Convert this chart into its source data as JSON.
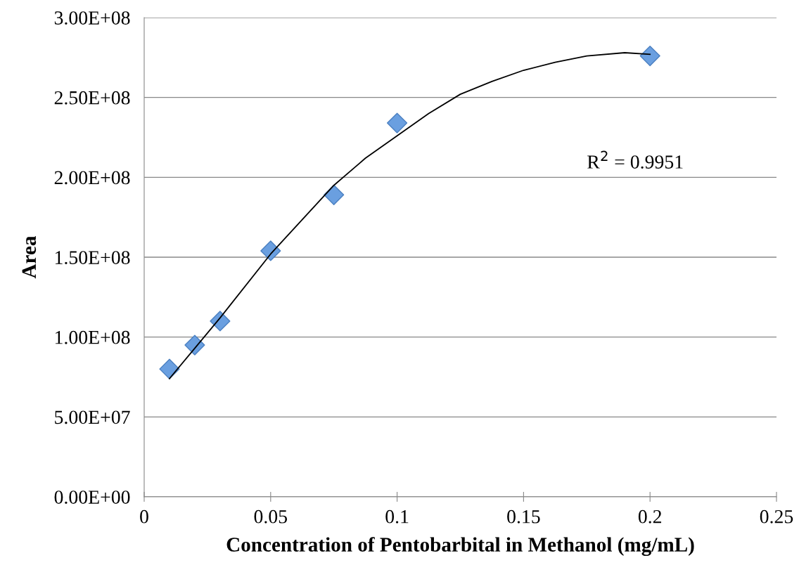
{
  "chart_data": {
    "type": "scatter",
    "xlabel": "Concentration of Pentobarbital in Methanol (mg/mL)",
    "ylabel": "Area",
    "annotations": [
      "R$^{2}$ = 0.9951"
    ],
    "series": [
      {
        "color": "#6a9fe0",
        "marker": "diamond",
        "x": [
          0.01,
          0.02,
          0.03,
          0.05,
          0.075,
          0.1,
          0.2
        ],
        "values": [
          80000000.0,
          95000000.0,
          110000000.0,
          154000000.0,
          189000000.0,
          234000000.0,
          276000000.0
        ]
      },
      {
        "type": "line",
        "color": "#000000",
        "marker": "none",
        "x": [
          0.01,
          0.02,
          0.03,
          0.05,
          0.075,
          0.0875,
          0.1,
          0.1125,
          0.125,
          0.1375,
          0.15,
          0.1625,
          0.175,
          0.19,
          0.2
        ],
        "values": [
          74000000.0,
          93000000.0,
          112000000.0,
          152000000.0,
          195000000.0,
          212000000.0,
          226000000.0,
          240000000.0,
          252000000.0,
          260000000.0,
          267000000.0,
          272000000.0,
          276000000.0,
          278000000.0,
          277000000.0
        ]
      }
    ],
    "xlim": [
      0,
      0.25
    ],
    "xticks": [
      0,
      0.05,
      0.1,
      0.15,
      0.2,
      0.25
    ],
    "ylim": [
      0,
      300000000.0
    ],
    "yticks": [
      {
        "value": 0,
        "label": "0.00E+00"
      },
      {
        "value": 50000000.0,
        "label": "5.00E+07"
      },
      {
        "value": 100000000.0,
        "label": "1.00E+08"
      },
      {
        "value": 150000000.0,
        "label": "1.50E+08"
      },
      {
        "value": 200000000.0,
        "label": "2.00E+08"
      },
      {
        "value": 250000000.0,
        "label": "2.50E+08"
      },
      {
        "value": 300000000.0,
        "label": "3.00E+08"
      }
    ],
    "grid": "y",
    "legend": false
  }
}
